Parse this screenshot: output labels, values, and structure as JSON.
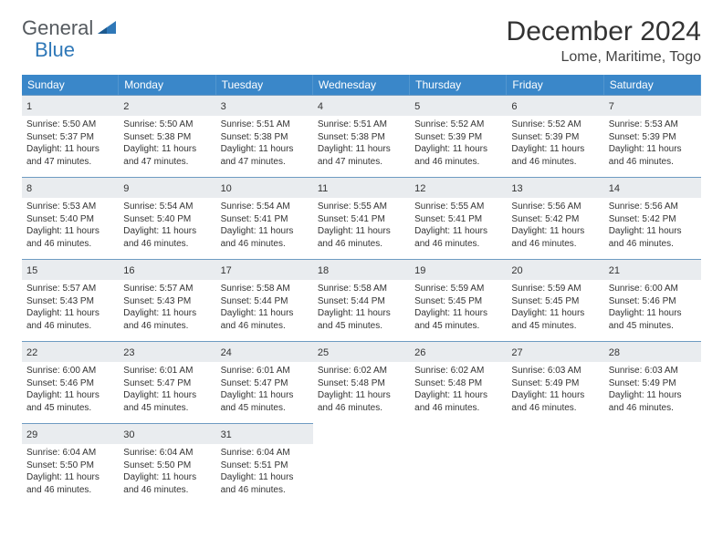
{
  "logo": {
    "text1": "General",
    "text2": "Blue"
  },
  "title": "December 2024",
  "location": "Lome, Maritime, Togo",
  "colors": {
    "header_bg": "#3a87c9",
    "header_text": "#ffffff",
    "daynum_bg": "#e9ecef",
    "cell_border": "#6e9bc2",
    "logo_gray": "#555a5f",
    "logo_blue": "#2f78b8"
  },
  "day_headers": [
    "Sunday",
    "Monday",
    "Tuesday",
    "Wednesday",
    "Thursday",
    "Friday",
    "Saturday"
  ],
  "labels": {
    "sunrise": "Sunrise: ",
    "sunset": "Sunset: ",
    "daylight": "Daylight: "
  },
  "days": [
    {
      "n": 1,
      "sunrise": "5:50 AM",
      "sunset": "5:37 PM",
      "dl1": "11 hours",
      "dl2": "and 47 minutes."
    },
    {
      "n": 2,
      "sunrise": "5:50 AM",
      "sunset": "5:38 PM",
      "dl1": "11 hours",
      "dl2": "and 47 minutes."
    },
    {
      "n": 3,
      "sunrise": "5:51 AM",
      "sunset": "5:38 PM",
      "dl1": "11 hours",
      "dl2": "and 47 minutes."
    },
    {
      "n": 4,
      "sunrise": "5:51 AM",
      "sunset": "5:38 PM",
      "dl1": "11 hours",
      "dl2": "and 47 minutes."
    },
    {
      "n": 5,
      "sunrise": "5:52 AM",
      "sunset": "5:39 PM",
      "dl1": "11 hours",
      "dl2": "and 46 minutes."
    },
    {
      "n": 6,
      "sunrise": "5:52 AM",
      "sunset": "5:39 PM",
      "dl1": "11 hours",
      "dl2": "and 46 minutes."
    },
    {
      "n": 7,
      "sunrise": "5:53 AM",
      "sunset": "5:39 PM",
      "dl1": "11 hours",
      "dl2": "and 46 minutes."
    },
    {
      "n": 8,
      "sunrise": "5:53 AM",
      "sunset": "5:40 PM",
      "dl1": "11 hours",
      "dl2": "and 46 minutes."
    },
    {
      "n": 9,
      "sunrise": "5:54 AM",
      "sunset": "5:40 PM",
      "dl1": "11 hours",
      "dl2": "and 46 minutes."
    },
    {
      "n": 10,
      "sunrise": "5:54 AM",
      "sunset": "5:41 PM",
      "dl1": "11 hours",
      "dl2": "and 46 minutes."
    },
    {
      "n": 11,
      "sunrise": "5:55 AM",
      "sunset": "5:41 PM",
      "dl1": "11 hours",
      "dl2": "and 46 minutes."
    },
    {
      "n": 12,
      "sunrise": "5:55 AM",
      "sunset": "5:41 PM",
      "dl1": "11 hours",
      "dl2": "and 46 minutes."
    },
    {
      "n": 13,
      "sunrise": "5:56 AM",
      "sunset": "5:42 PM",
      "dl1": "11 hours",
      "dl2": "and 46 minutes."
    },
    {
      "n": 14,
      "sunrise": "5:56 AM",
      "sunset": "5:42 PM",
      "dl1": "11 hours",
      "dl2": "and 46 minutes."
    },
    {
      "n": 15,
      "sunrise": "5:57 AM",
      "sunset": "5:43 PM",
      "dl1": "11 hours",
      "dl2": "and 46 minutes."
    },
    {
      "n": 16,
      "sunrise": "5:57 AM",
      "sunset": "5:43 PM",
      "dl1": "11 hours",
      "dl2": "and 46 minutes."
    },
    {
      "n": 17,
      "sunrise": "5:58 AM",
      "sunset": "5:44 PM",
      "dl1": "11 hours",
      "dl2": "and 46 minutes."
    },
    {
      "n": 18,
      "sunrise": "5:58 AM",
      "sunset": "5:44 PM",
      "dl1": "11 hours",
      "dl2": "and 45 minutes."
    },
    {
      "n": 19,
      "sunrise": "5:59 AM",
      "sunset": "5:45 PM",
      "dl1": "11 hours",
      "dl2": "and 45 minutes."
    },
    {
      "n": 20,
      "sunrise": "5:59 AM",
      "sunset": "5:45 PM",
      "dl1": "11 hours",
      "dl2": "and 45 minutes."
    },
    {
      "n": 21,
      "sunrise": "6:00 AM",
      "sunset": "5:46 PM",
      "dl1": "11 hours",
      "dl2": "and 45 minutes."
    },
    {
      "n": 22,
      "sunrise": "6:00 AM",
      "sunset": "5:46 PM",
      "dl1": "11 hours",
      "dl2": "and 45 minutes."
    },
    {
      "n": 23,
      "sunrise": "6:01 AM",
      "sunset": "5:47 PM",
      "dl1": "11 hours",
      "dl2": "and 45 minutes."
    },
    {
      "n": 24,
      "sunrise": "6:01 AM",
      "sunset": "5:47 PM",
      "dl1": "11 hours",
      "dl2": "and 45 minutes."
    },
    {
      "n": 25,
      "sunrise": "6:02 AM",
      "sunset": "5:48 PM",
      "dl1": "11 hours",
      "dl2": "and 46 minutes."
    },
    {
      "n": 26,
      "sunrise": "6:02 AM",
      "sunset": "5:48 PM",
      "dl1": "11 hours",
      "dl2": "and 46 minutes."
    },
    {
      "n": 27,
      "sunrise": "6:03 AM",
      "sunset": "5:49 PM",
      "dl1": "11 hours",
      "dl2": "and 46 minutes."
    },
    {
      "n": 28,
      "sunrise": "6:03 AM",
      "sunset": "5:49 PM",
      "dl1": "11 hours",
      "dl2": "and 46 minutes."
    },
    {
      "n": 29,
      "sunrise": "6:04 AM",
      "sunset": "5:50 PM",
      "dl1": "11 hours",
      "dl2": "and 46 minutes."
    },
    {
      "n": 30,
      "sunrise": "6:04 AM",
      "sunset": "5:50 PM",
      "dl1": "11 hours",
      "dl2": "and 46 minutes."
    },
    {
      "n": 31,
      "sunrise": "6:04 AM",
      "sunset": "5:51 PM",
      "dl1": "11 hours",
      "dl2": "and 46 minutes."
    }
  ],
  "start_offset": 0,
  "trailing_empty": 4
}
